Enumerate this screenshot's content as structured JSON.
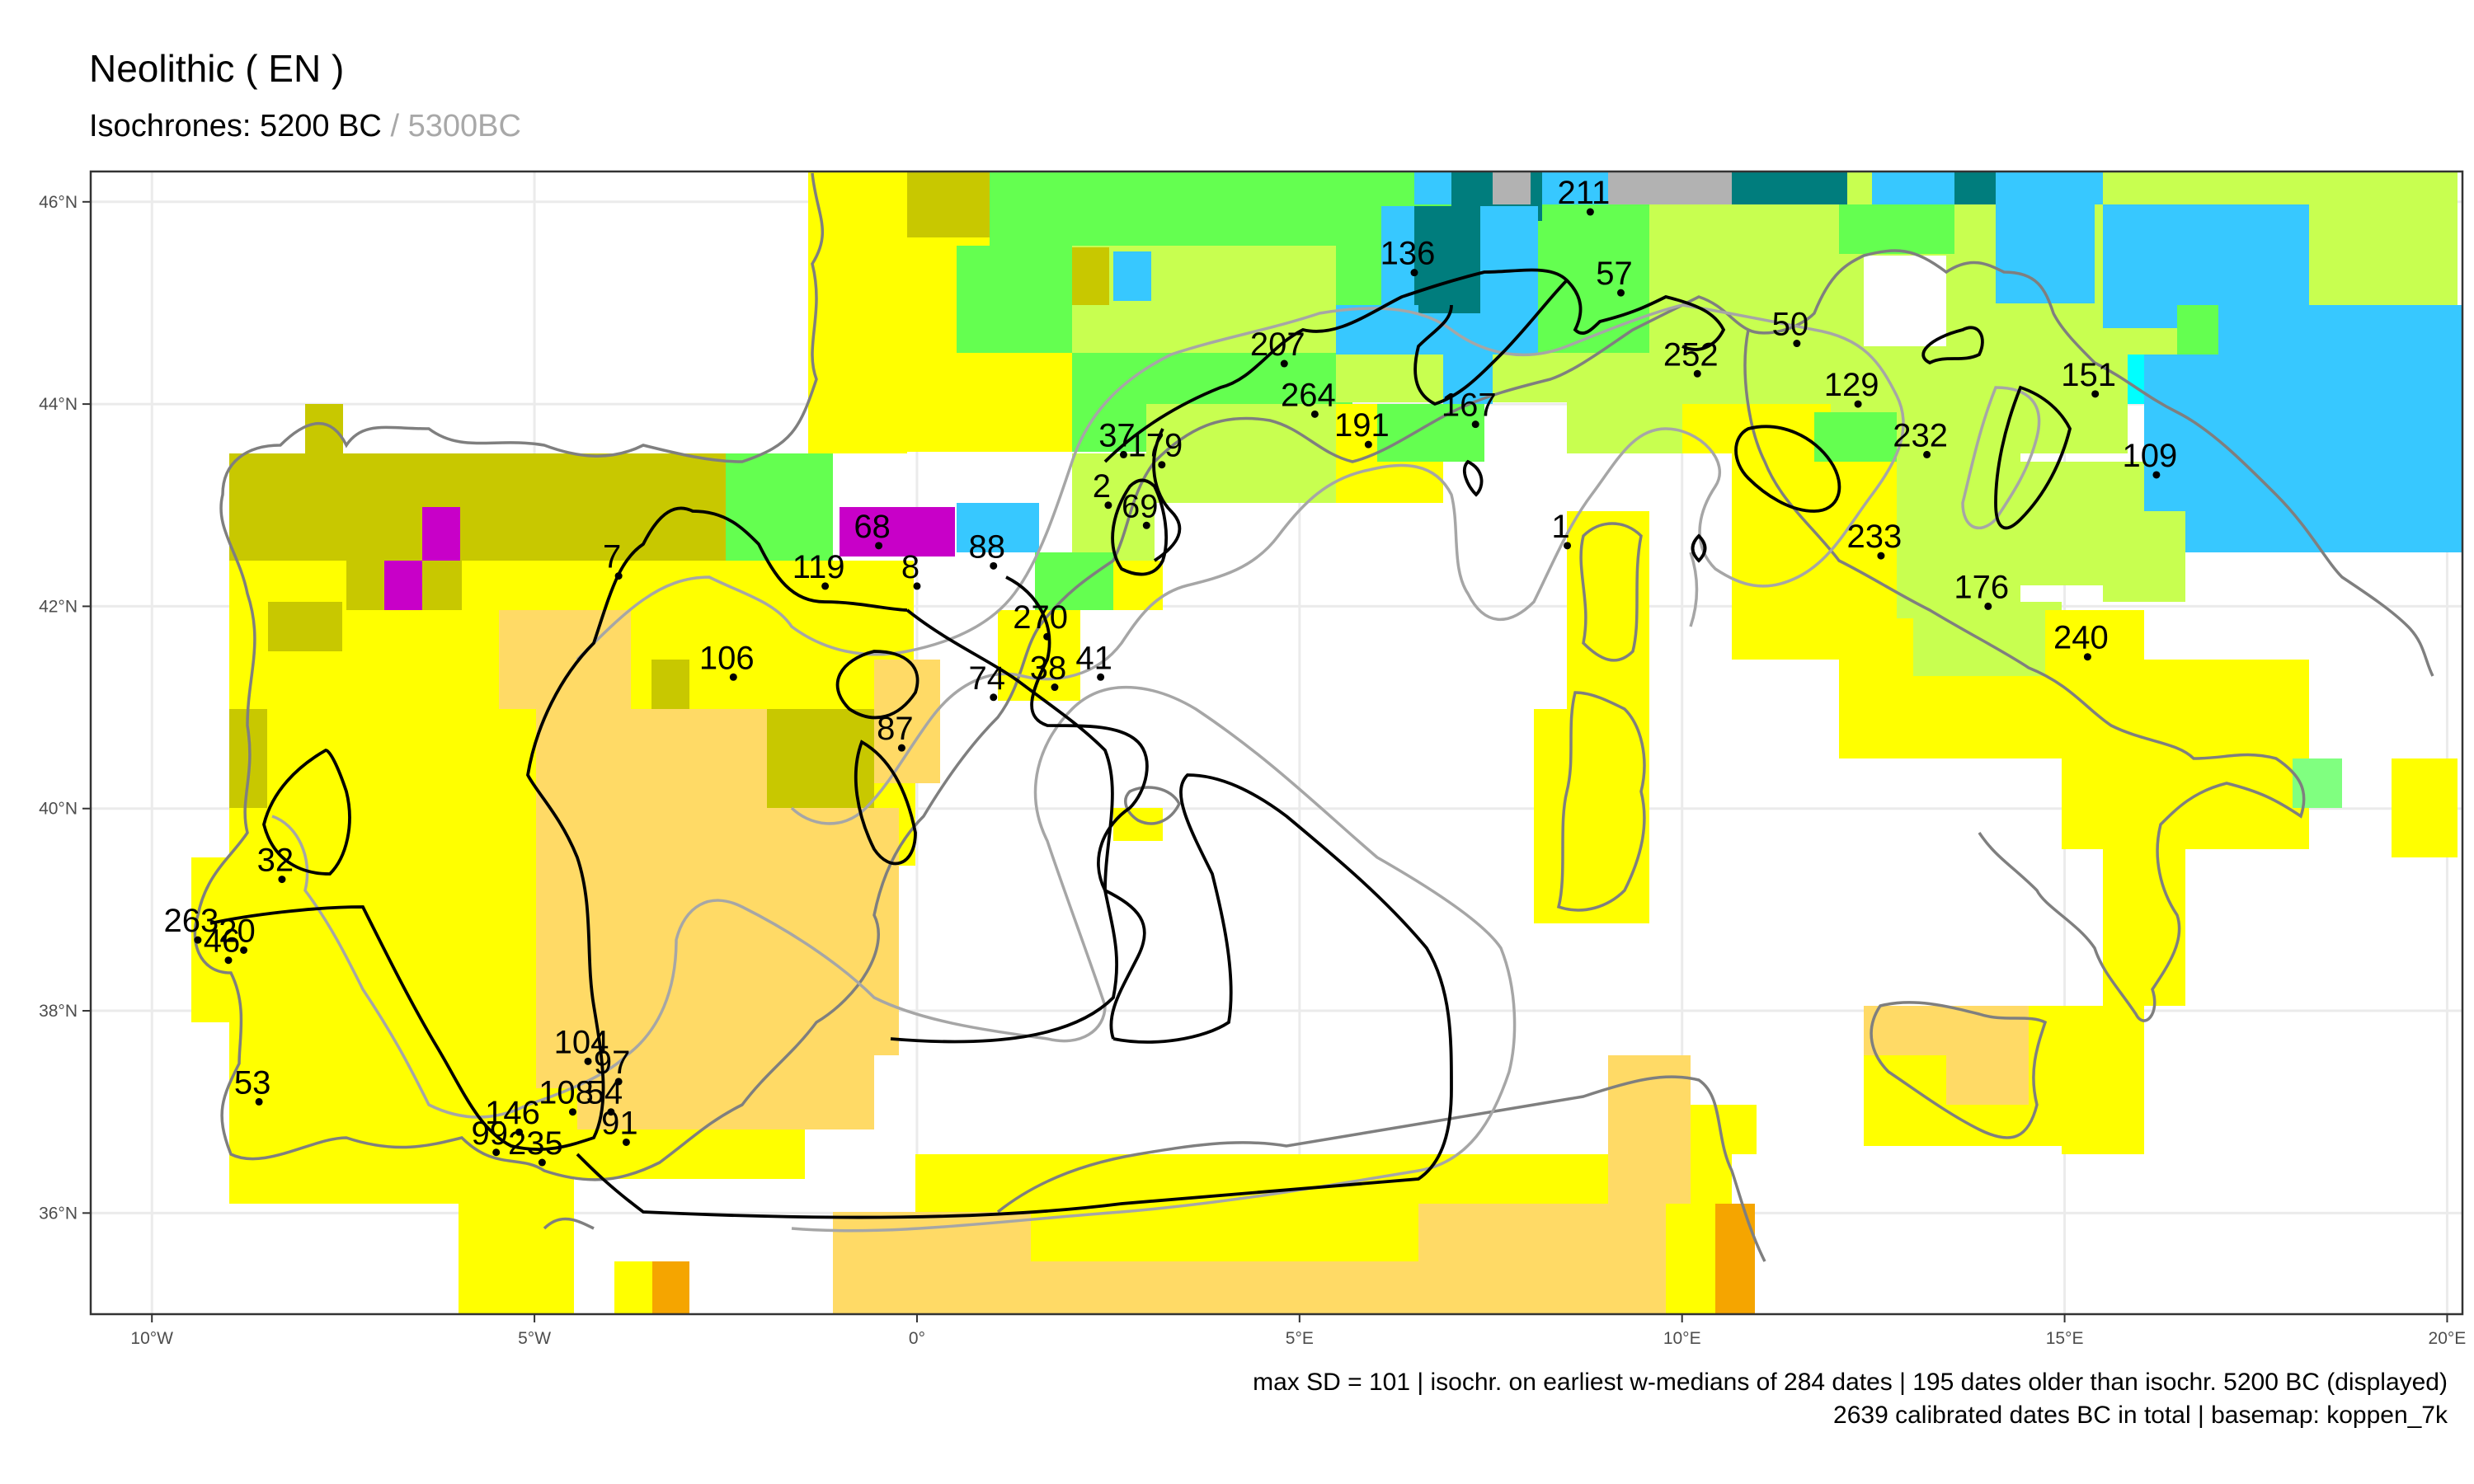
{
  "header": {
    "title": "Neolithic ( EN )",
    "subtitle_main": "Isochrones: 5200 BC",
    "subtitle_sep": " / ",
    "subtitle_prev": "5300BC"
  },
  "axes": {
    "lon_ticks": [
      {
        "value": -10,
        "label": "10°W"
      },
      {
        "value": -5,
        "label": "5°W"
      },
      {
        "value": 0,
        "label": "0°"
      },
      {
        "value": 5,
        "label": "5°E"
      },
      {
        "value": 10,
        "label": "10°E"
      },
      {
        "value": 15,
        "label": "15°E"
      },
      {
        "value": 20,
        "label": "20°E"
      }
    ],
    "lat_ticks": [
      {
        "value": 46,
        "label": "46°N"
      },
      {
        "value": 44,
        "label": "44°N"
      },
      {
        "value": 42,
        "label": "42°N"
      },
      {
        "value": 40,
        "label": "40°N"
      },
      {
        "value": 38,
        "label": "38°N"
      },
      {
        "value": 36,
        "label": "36°N"
      }
    ],
    "xlim": [
      -10.8,
      20.2
    ],
    "ylim": [
      35,
      46.3
    ]
  },
  "palette": {
    "hot_desert_steppe": "#FFDA66",
    "csa_yellow": "#FFFF00",
    "olive": "#C8C800",
    "cf_light": "#C8FF50",
    "cf_green": "#64FF50",
    "df_blue": "#37C8FF",
    "teal": "#007D7D",
    "magenta": "#C800C8",
    "gray": "#B2B2B2",
    "orange": "#F5A500",
    "isochrone_current": "#000000",
    "isochrone_previous": "#A6A6A6",
    "coastline": "#7F7F7F"
  },
  "sites": [
    {
      "label": "211",
      "lon": 8.8,
      "lat": 45.9
    },
    {
      "label": "136",
      "lon": 6.5,
      "lat": 45.3
    },
    {
      "label": "57",
      "lon": 9.2,
      "lat": 45.1
    },
    {
      "label": "50",
      "lon": 11.5,
      "lat": 44.6
    },
    {
      "label": "207",
      "lon": 4.8,
      "lat": 44.4
    },
    {
      "label": "252",
      "lon": 10.2,
      "lat": 44.3
    },
    {
      "label": "129",
      "lon": 12.3,
      "lat": 44.0
    },
    {
      "label": "151",
      "lon": 15.4,
      "lat": 44.1
    },
    {
      "label": "264",
      "lon": 5.2,
      "lat": 43.9
    },
    {
      "label": "167",
      "lon": 7.3,
      "lat": 43.8
    },
    {
      "label": "37",
      "lon": 2.7,
      "lat": 43.5
    },
    {
      "label": "179",
      "lon": 3.2,
      "lat": 43.4
    },
    {
      "label": "191",
      "lon": 5.9,
      "lat": 43.6
    },
    {
      "label": "232",
      "lon": 13.2,
      "lat": 43.5
    },
    {
      "label": "109",
      "lon": 16.2,
      "lat": 43.3
    },
    {
      "label": "2",
      "lon": 2.5,
      "lat": 43.0
    },
    {
      "label": "68",
      "lon": -0.5,
      "lat": 42.6
    },
    {
      "label": "88",
      "lon": 1.0,
      "lat": 42.4
    },
    {
      "label": "69",
      "lon": 3.0,
      "lat": 42.8
    },
    {
      "label": "1",
      "lon": 8.5,
      "lat": 42.6
    },
    {
      "label": "233",
      "lon": 12.6,
      "lat": 42.5
    },
    {
      "label": "7",
      "lon": -3.9,
      "lat": 42.3
    },
    {
      "label": "119",
      "lon": -1.2,
      "lat": 42.2
    },
    {
      "label": "8",
      "lon": 0.0,
      "lat": 42.2
    },
    {
      "label": "176",
      "lon": 14.0,
      "lat": 42.0
    },
    {
      "label": "270",
      "lon": 1.7,
      "lat": 41.7
    },
    {
      "label": "106",
      "lon": -2.4,
      "lat": 41.3
    },
    {
      "label": "41",
      "lon": 2.4,
      "lat": 41.3
    },
    {
      "label": "240",
      "lon": 15.3,
      "lat": 41.5
    },
    {
      "label": "74",
      "lon": 1.0,
      "lat": 41.1
    },
    {
      "label": "38",
      "lon": 1.8,
      "lat": 41.2
    },
    {
      "label": "87",
      "lon": -0.2,
      "lat": 40.6
    },
    {
      "label": "32",
      "lon": -8.3,
      "lat": 39.3
    },
    {
      "label": "263",
      "lon": -9.4,
      "lat": 38.7
    },
    {
      "label": "20",
      "lon": -8.8,
      "lat": 38.6
    },
    {
      "label": "46",
      "lon": -9.0,
      "lat": 38.5
    },
    {
      "label": "104",
      "lon": -4.3,
      "lat": 37.5
    },
    {
      "label": "97",
      "lon": -3.9,
      "lat": 37.3
    },
    {
      "label": "108",
      "lon": -4.5,
      "lat": 37.0
    },
    {
      "label": "54",
      "lon": -4.0,
      "lat": 37.0
    },
    {
      "label": "53",
      "lon": -8.6,
      "lat": 37.1
    },
    {
      "label": "146",
      "lon": -5.2,
      "lat": 36.8
    },
    {
      "label": "99",
      "lon": -5.5,
      "lat": 36.6
    },
    {
      "label": "235",
      "lon": -4.9,
      "lat": 36.5
    },
    {
      "label": "91",
      "lon": -3.8,
      "lat": 36.7
    }
  ],
  "footer": {
    "line1": "max SD = 101 | isochr. on earliest w-medians of 284 dates |  195 dates older than isochr. 5200 BC (displayed)",
    "line2": "2639 calibrated dates BC in total | basemap: koppen_7k"
  }
}
